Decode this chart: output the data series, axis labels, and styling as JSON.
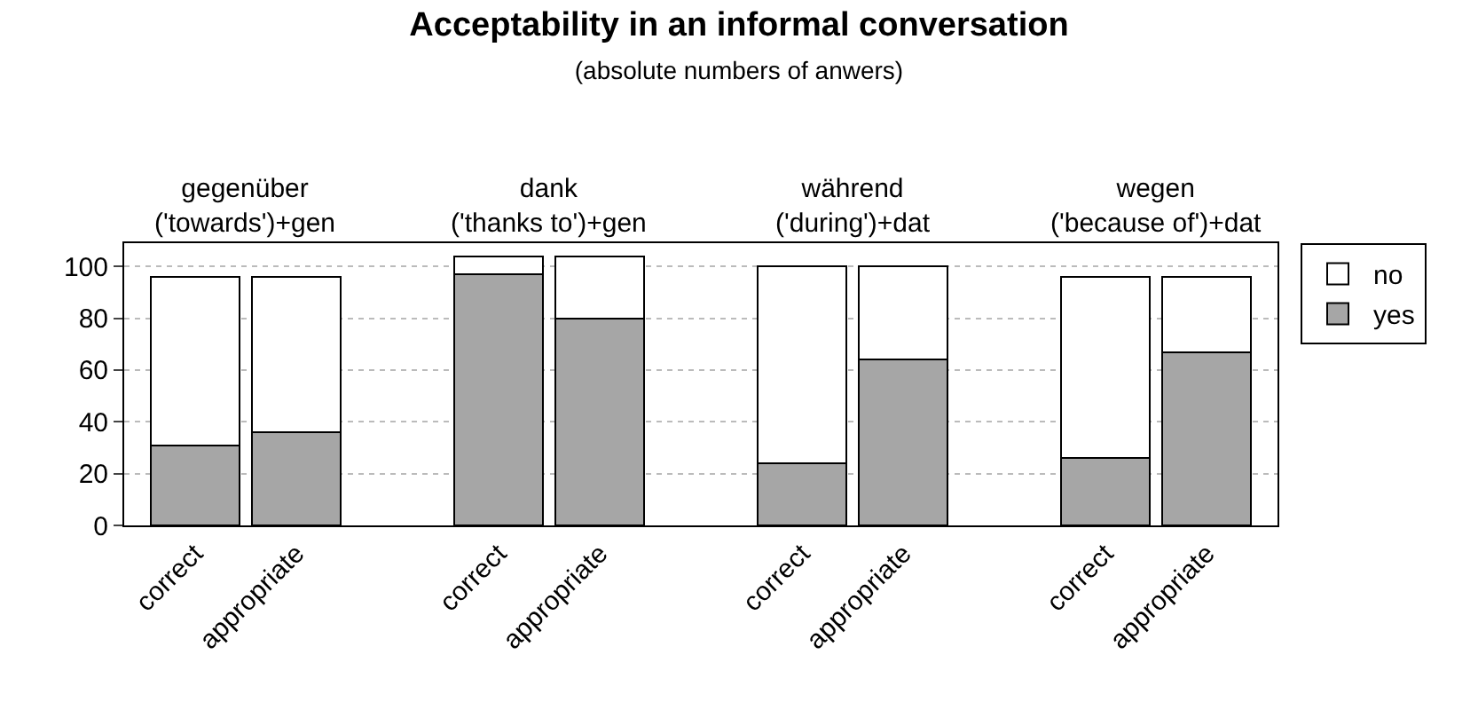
{
  "chart_data": {
    "type": "bar",
    "title": "Acceptability in an informal conversation",
    "subtitle": "(absolute numbers of anwers)",
    "categories": [
      "correct",
      "appropriate",
      null,
      "correct",
      "appropriate",
      null,
      "correct",
      "appropriate",
      null,
      "correct",
      "appropriate"
    ],
    "series": [
      {
        "name": "yes",
        "color": "#a6a6a6",
        "values": [
          31,
          36,
          null,
          97,
          80,
          null,
          24,
          64,
          null,
          26,
          67
        ]
      },
      {
        "name": "no",
        "color": "#ffffff",
        "values": [
          65,
          60,
          null,
          7,
          24,
          null,
          76,
          36,
          null,
          70,
          29
        ]
      }
    ],
    "stacked": true,
    "ylim": [
      0,
      109
    ],
    "yticks": [
      0,
      20,
      40,
      60,
      80,
      100
    ],
    "grid": "y",
    "legend": "top right",
    "annotations": [
      "gegenüber\n('towards')+gen",
      "dank\n('thanks to')+gen",
      "während\n('during')+dat",
      "wegen\n('because of')+dat"
    ]
  }
}
